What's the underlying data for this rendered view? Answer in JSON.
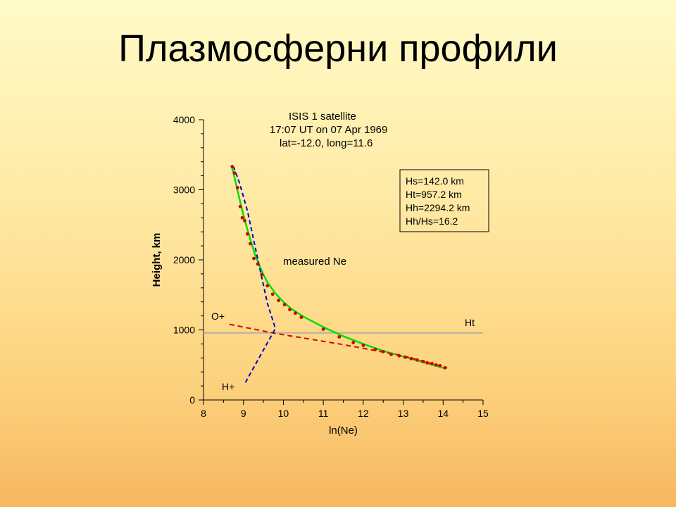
{
  "slide": {
    "title": "Плазмосферни профили"
  },
  "chart_data": {
    "type": "line",
    "title_lines": [
      "ISIS 1 satellite",
      "17:07 UT on 07 Apr 1969",
      "lat=-12.0, long=11.6"
    ],
    "xlabel": "ln(Ne)",
    "ylabel": "Height, km",
    "xlim": [
      8,
      15
    ],
    "ylim": [
      0,
      4000
    ],
    "xticks": [
      8,
      9,
      10,
      11,
      12,
      13,
      14,
      15
    ],
    "yticks": [
      0,
      1000,
      2000,
      3000,
      4000
    ],
    "info_box": [
      "Hs=142.0 km",
      "Ht=957.2 km",
      "Hh=2294.2 km",
      "Hh/Hs=16.2"
    ],
    "annotations": {
      "measured": "measured Ne",
      "oplus": "O+",
      "hplus": "H+",
      "ht": "Ht"
    },
    "transition_height": 957.2,
    "colors": {
      "fit": "#00e000",
      "measured": "#cc0000",
      "oplus": "#dd0000",
      "hplus": "#0000cc",
      "ht_line": "#b0b0b0"
    },
    "series": [
      {
        "role": "fit",
        "x": [
          8.7,
          8.8,
          8.9,
          9.0,
          9.1,
          9.2,
          9.3,
          9.4,
          9.5,
          9.6,
          9.8,
          10.0,
          10.2,
          10.5,
          11.0,
          11.5,
          12.0,
          12.5,
          13.0,
          13.5,
          14.05
        ],
        "y": [
          3350,
          3120,
          2870,
          2640,
          2430,
          2240,
          2060,
          1920,
          1790,
          1680,
          1520,
          1400,
          1300,
          1190,
          1040,
          910,
          800,
          700,
          620,
          540,
          450
        ]
      },
      {
        "role": "measured",
        "x": [
          8.72,
          8.78,
          8.85,
          8.92,
          8.97,
          9.03,
          9.1,
          9.17,
          9.26,
          9.36,
          9.46,
          9.6,
          9.73,
          9.88,
          10.03,
          10.16,
          10.3,
          10.45,
          11.0,
          11.4,
          11.75,
          12.0,
          12.3,
          12.5,
          12.7,
          12.9,
          13.05,
          13.2,
          13.35,
          13.5,
          13.6,
          13.72,
          13.82,
          13.92,
          14.05
        ],
        "y": [
          3330,
          3240,
          3030,
          2760,
          2600,
          2560,
          2370,
          2230,
          2020,
          1940,
          1790,
          1630,
          1510,
          1420,
          1360,
          1290,
          1240,
          1180,
          1010,
          900,
          820,
          780,
          720,
          690,
          650,
          630,
          610,
          590,
          570,
          550,
          530,
          520,
          500,
          490,
          460
        ]
      },
      {
        "role": "oplus",
        "x": [
          8.65,
          9.8,
          11.5,
          13.0,
          14.1
        ],
        "y": [
          1080,
          950,
          790,
          630,
          460
        ]
      },
      {
        "role": "hplus",
        "x": [
          9.05,
          9.8,
          9.6,
          9.4,
          9.1,
          8.9,
          8.75
        ],
        "y": [
          250,
          1020,
          1380,
          1900,
          2700,
          3100,
          3330
        ]
      }
    ]
  }
}
